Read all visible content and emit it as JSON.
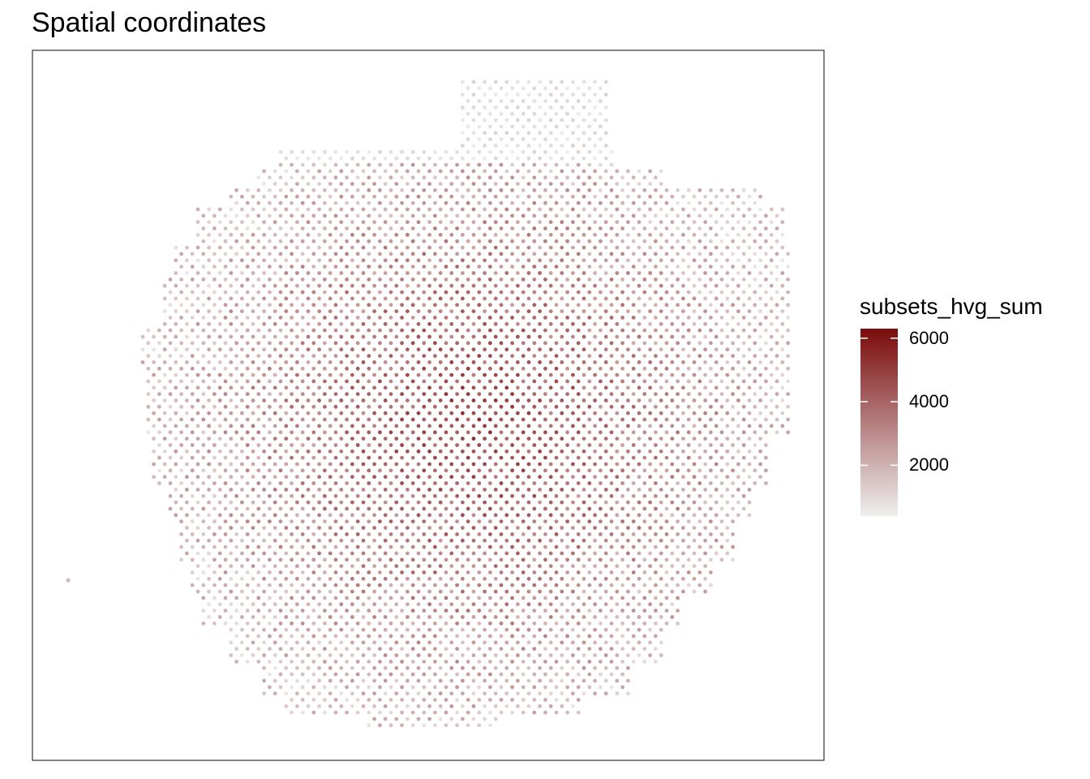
{
  "chart_data": {
    "type": "scatter",
    "title": "Spatial coordinates",
    "xlabel": "",
    "ylabel": "",
    "axes_visible": false,
    "grid": false,
    "legend_position": "right",
    "color_variable": "subsets_hvg_sum",
    "color_scale": {
      "low": "#efefef",
      "high": "#7a0b0b",
      "range": [
        400,
        6300
      ],
      "ticks": [
        2000,
        4000,
        6000
      ],
      "tick_labels": [
        "2000",
        "4000",
        "6000"
      ]
    },
    "spot_layout": "hexagonal grid of spots across the tissue section, one outlier spot at left edge",
    "outlier_spot": {
      "x": -20.5,
      "y": 18.5,
      "value": 1800
    },
    "value_summary": {
      "min": 400,
      "max": 6200,
      "typical": 2500
    },
    "xlim": [
      -26,
      93
    ],
    "ylim": [
      -2,
      62
    ]
  }
}
